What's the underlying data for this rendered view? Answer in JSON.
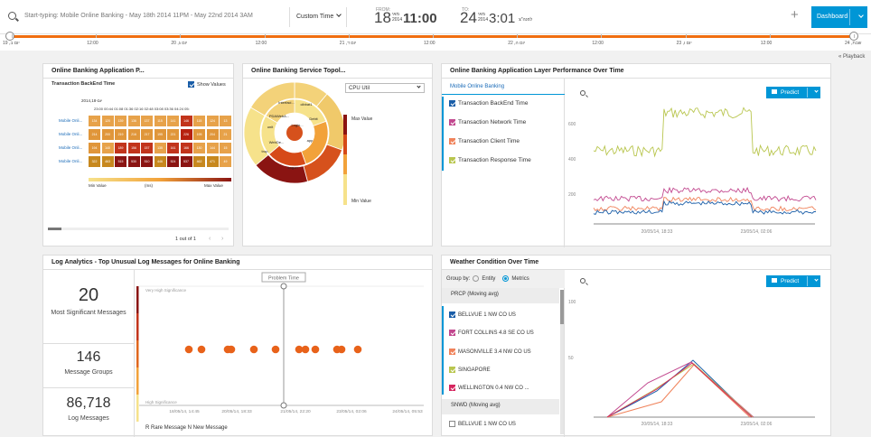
{
  "topbar": {
    "search_placeholder": "Start-typing: Mobile Online Banking - May 18th 2014 11PM - May 22nd 2014 3AM",
    "custom_time_label": "Custom Time",
    "from_label": "FROM:",
    "from_day": "18",
    "from_month": "מאי",
    "from_year": "2014",
    "from_time": "11:00",
    "to_label": "TO:",
    "to_day": "24",
    "to_month": "מאי",
    "to_year": "2014",
    "to_time": "3:01",
    "to_ampm": "לפנה\"צ",
    "dashboard_label": "Dashboard",
    "plus": "+"
  },
  "timeline": {
    "ticks": [
      "19 ,יום ב",
      "12:00",
      "20 ,יום ג",
      "12:00",
      "21 ,יום ד",
      "12:00",
      "22 ,יום ה",
      "12:00",
      "23 ,יום ו",
      "12:00",
      "24 ,שבת"
    ],
    "playback_label": "« Playback"
  },
  "panel_heatmap": {
    "title": "Online Banking Application P...",
    "subtitle": "Transaction BackEnd Time",
    "show_values_label": "Show Values",
    "date_label": "2014,18-יום",
    "time_header": "23:00 00:44 01:08 01:36 02:16 02:48 03:08 03:36 04:24 05:",
    "row_labels": [
      "Mobile Onli...",
      "Mobile Onli...",
      "Mobile Onli...",
      "Mobile Onli..."
    ],
    "rows": [
      [
        "134",
        "120",
        "139",
        "136",
        "137",
        "115",
        "141",
        "146",
        "115",
        "124",
        "13"
      ],
      [
        "214",
        "200",
        "219",
        "216",
        "217",
        "195",
        "221",
        "226",
        "195",
        "204",
        "21"
      ],
      [
        "194",
        "140",
        "189",
        "156",
        "157",
        "135",
        "161",
        "166",
        "130",
        "144",
        "15"
      ],
      [
        "322",
        "463",
        "515",
        "530",
        "510",
        "446",
        "524",
        "537",
        "462",
        "471",
        "49"
      ]
    ],
    "min_label": "Min Value",
    "unit_label": "(ms)",
    "max_label": "Max Value",
    "pager": "1 out of 1"
  },
  "panel_topology": {
    "title": "Online Banking Service Topol...",
    "metric_select": "CPU Util",
    "max_label": "Max Value",
    "min_label": "Min Value",
    "ring_labels": [
      "cibbat1",
      "Interfaci...",
      "PDAWebA...",
      "Logon",
      "app",
      "WebDe...",
      "Login...",
      "unit",
      "trop",
      "Debit"
    ]
  },
  "panel_perf": {
    "title": "Online Banking Application Layer Performance Over Time",
    "group_header": "Mobile Online Banking",
    "legend": [
      {
        "label": "Transaction BackEnd Time",
        "color": "#1a5ea8"
      },
      {
        "label": "Transaction Network Time",
        "color": "#c2488f"
      },
      {
        "label": "Transaction Client Time",
        "color": "#f0835b"
      },
      {
        "label": "Transaction Response Time",
        "color": "#b9c64f"
      }
    ],
    "predict_label": "Predict",
    "y_ticks": [
      "600",
      "400",
      "200"
    ],
    "x_ticks": [
      "20/05/14, 18:33",
      "23/05/14, 02:06"
    ]
  },
  "panel_logs": {
    "title": "Log Analytics - Top Unusual Log Messages for Online Banking",
    "stats": [
      {
        "value": "20",
        "label": "Most Significant Messages"
      },
      {
        "value": "146",
        "label": "Message Groups"
      },
      {
        "value": "86,718",
        "label": "Log Messages"
      }
    ],
    "problem_time_label": "Problem Time",
    "very_high_label": "Very High Significance",
    "high_label": "High Significance",
    "x_ticks": [
      "18/05/14, 14:45",
      "20/05/14, 18:33",
      "21/05/14, 22:20",
      "23/05/14, 02:06",
      "24/05/14, 05:53"
    ],
    "legend": "R Rare Message  N New Message",
    "dot_count": 12
  },
  "panel_weather": {
    "title": "Weather Condition Over Time",
    "group_by_label": "Group by:",
    "entity_label": "Entity",
    "metrics_label": "Metrics",
    "section1": "PRCP (Moving avg)",
    "items": [
      {
        "label": "BELLVUE 1 NW CO US",
        "color": "#1a5ea8",
        "checked": true
      },
      {
        "label": "FORT COLLINS 4.8 SE CO US",
        "color": "#c2488f",
        "checked": true
      },
      {
        "label": "MASONVILLE 3.4 NW CO US",
        "color": "#f0835b",
        "checked": true
      },
      {
        "label": "SINGAPORE",
        "color": "#b9c64f",
        "checked": true
      },
      {
        "label": "WELLINGTON 0.4 NW CO ...",
        "color": "#d6265f",
        "checked": true
      }
    ],
    "section2": "SNWD (Moving avg)",
    "item_after": "BELLVUE 1 NW CO US",
    "predict_label": "Predict",
    "y_ticks": [
      "100",
      "50"
    ],
    "x_ticks": [
      "20/05/14, 18:33",
      "23/05/14, 02:06"
    ]
  }
}
